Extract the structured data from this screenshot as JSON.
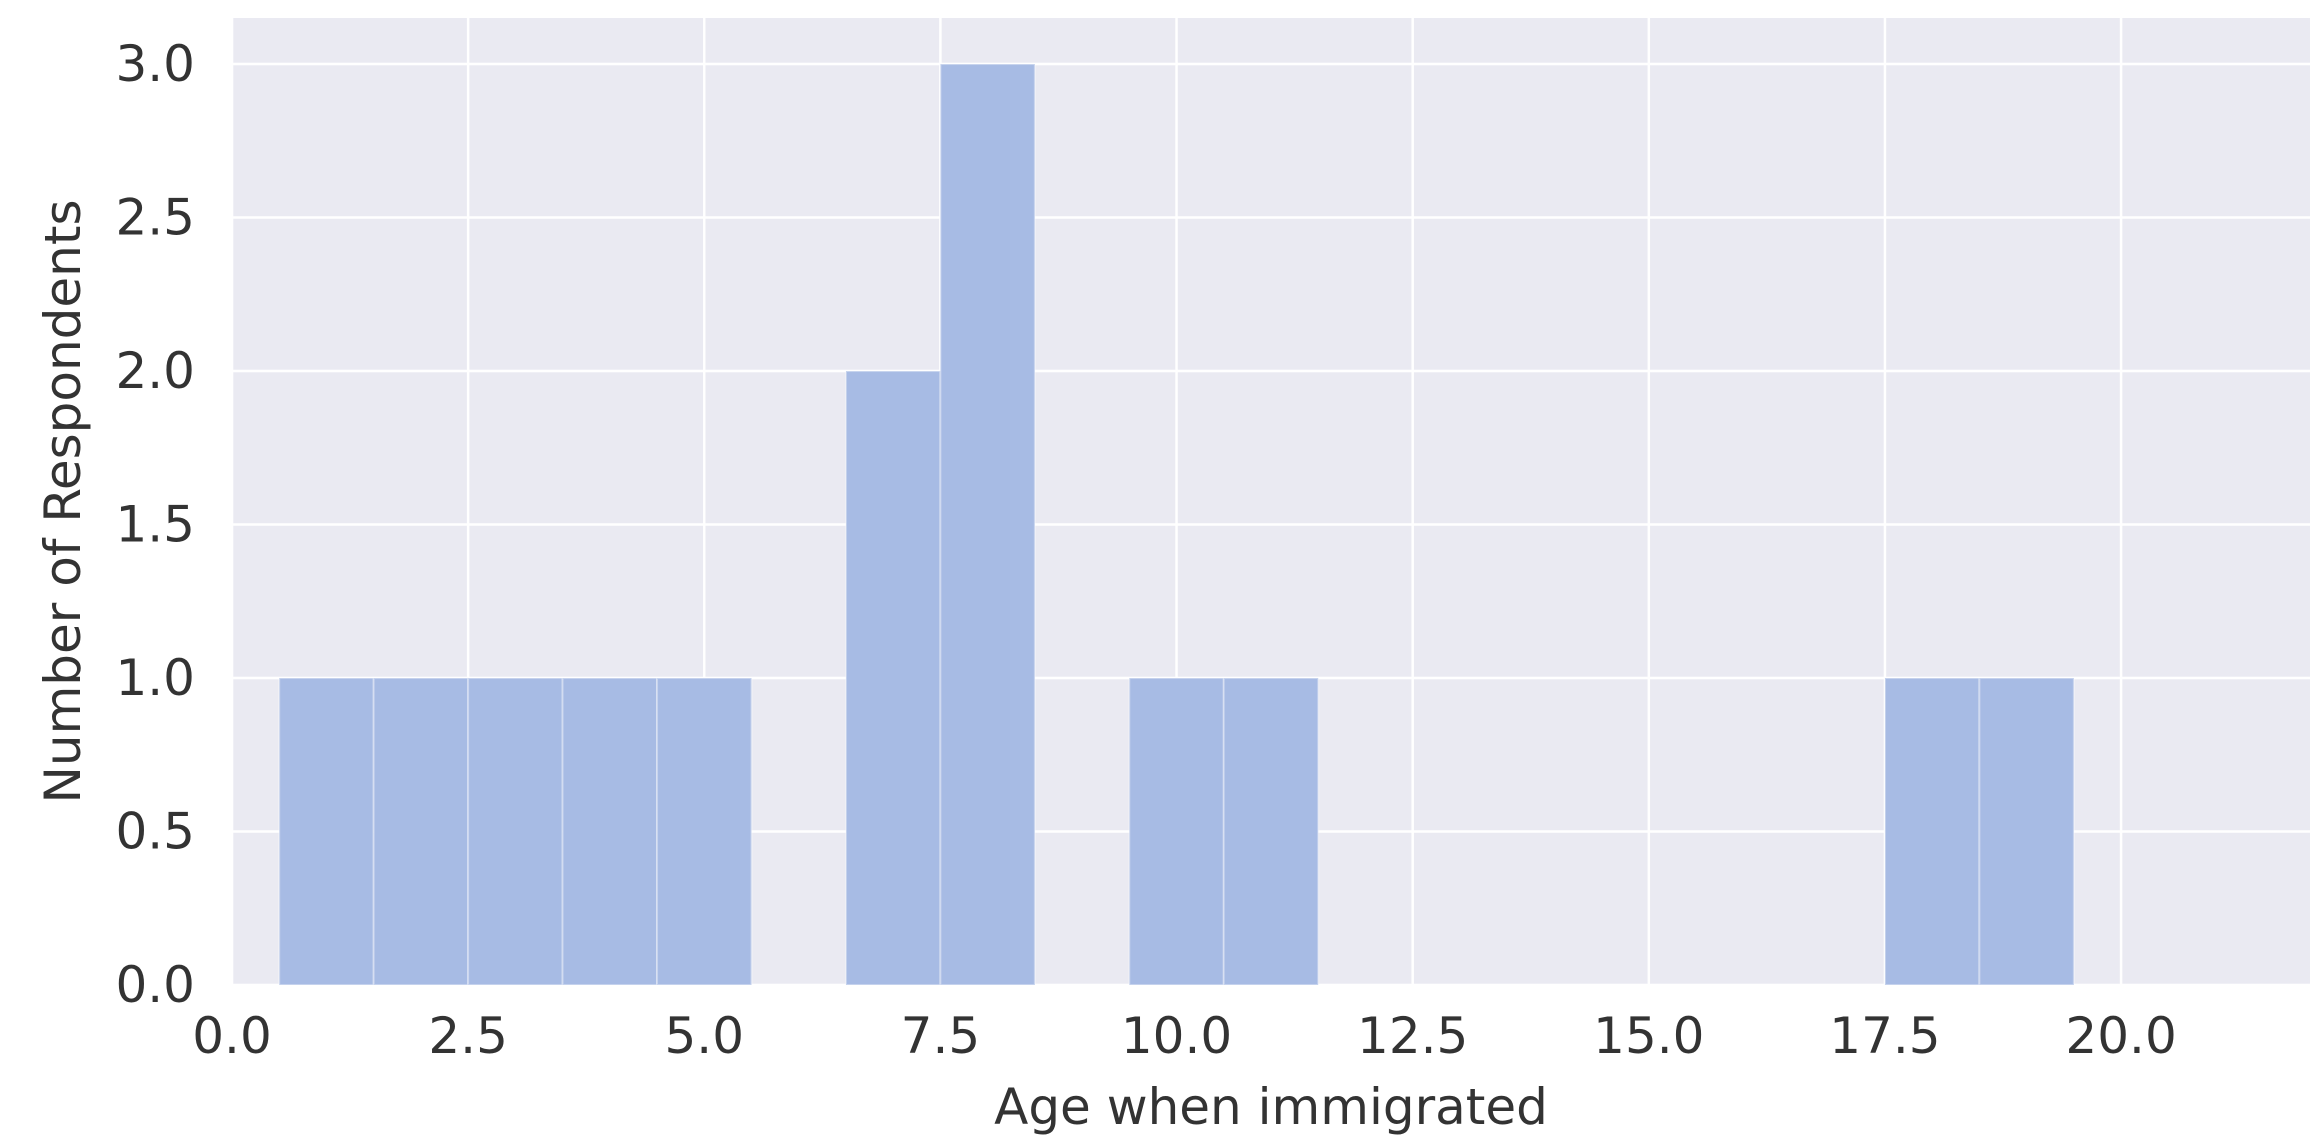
{
  "chart_data": {
    "type": "bar",
    "subtype": "histogram",
    "xlabel": "Age when immigrated",
    "ylabel": "Number of Respondents",
    "xlim": [
      0.0,
      22.0
    ],
    "ylim": [
      0.0,
      3.15
    ],
    "x_ticks": [
      "0.0",
      "2.5",
      "5.0",
      "7.5",
      "10.0",
      "12.5",
      "15.0",
      "17.5",
      "20.0"
    ],
    "y_ticks": [
      "0.0",
      "0.5",
      "1.0",
      "1.5",
      "2.0",
      "2.5",
      "3.0"
    ],
    "grid": true,
    "bar_color": "#a7bbe4",
    "background_color": "#eaeaf2",
    "bins": [
      {
        "x0": 0.5,
        "x1": 1.5,
        "count": 1
      },
      {
        "x0": 1.5,
        "x1": 2.5,
        "count": 1
      },
      {
        "x0": 2.5,
        "x1": 3.5,
        "count": 1
      },
      {
        "x0": 3.5,
        "x1": 4.5,
        "count": 1
      },
      {
        "x0": 4.5,
        "x1": 5.5,
        "count": 1
      },
      {
        "x0": 6.5,
        "x1": 7.5,
        "count": 2
      },
      {
        "x0": 7.5,
        "x1": 8.5,
        "count": 3
      },
      {
        "x0": 9.5,
        "x1": 10.5,
        "count": 1
      },
      {
        "x0": 10.5,
        "x1": 11.5,
        "count": 1
      },
      {
        "x0": 17.5,
        "x1": 18.5,
        "count": 1
      },
      {
        "x0": 18.5,
        "x1": 19.5,
        "count": 1
      }
    ]
  }
}
